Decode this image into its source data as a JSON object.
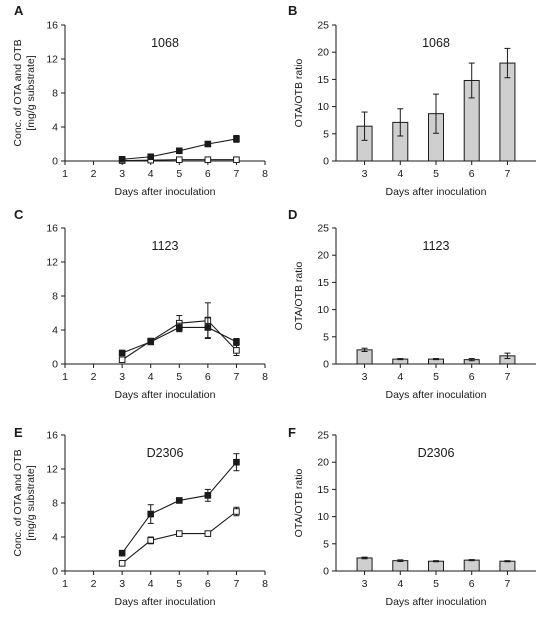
{
  "figure": {
    "description_text": "",
    "colors": {
      "axis": "#1a1a1a",
      "bar_fill": "#cfcfcf",
      "marker_filled": "#1a1a1a",
      "marker_open": "#ffffff"
    }
  },
  "chart_data": [
    {
      "panel": "A",
      "type": "line",
      "title": "1068",
      "xlabel": "Days after inoculation",
      "ylabel": [
        "Conc. of OTA and OTB",
        "[mg/g substrate]"
      ],
      "xlim": [
        1,
        8
      ],
      "ylim": [
        0,
        16
      ],
      "xticks": [
        "1",
        "2",
        "3",
        "4",
        "5",
        "6",
        "7",
        "8"
      ],
      "yticks": [
        "0",
        "4",
        "8",
        "12",
        "16"
      ],
      "series": [
        {
          "marker": "filled-square",
          "x": [
            3,
            4,
            5,
            6,
            7
          ],
          "y": [
            0.2,
            0.5,
            1.2,
            2.0,
            2.6
          ],
          "err": [
            0.1,
            0.1,
            0.2,
            0.2,
            0.4
          ]
        },
        {
          "marker": "open-square",
          "x": [
            3,
            4,
            5,
            6,
            7
          ],
          "y": [
            0.05,
            0.1,
            0.15,
            0.15,
            0.15
          ],
          "err": [
            0.05,
            0.05,
            0.05,
            0.05,
            0.05
          ]
        }
      ]
    },
    {
      "panel": "B",
      "type": "bar",
      "title": "1068",
      "xlabel": "Days after inoculation",
      "ylabel": [
        "OTA/OTB ratio"
      ],
      "categories": [
        "3",
        "4",
        "5",
        "6",
        "7"
      ],
      "ylim": [
        0,
        25
      ],
      "yticks": [
        "0",
        "5",
        "10",
        "15",
        "20",
        "25"
      ],
      "values": [
        6.4,
        7.1,
        8.7,
        14.8,
        18.0
      ],
      "err": [
        2.6,
        2.5,
        3.6,
        3.2,
        2.7
      ]
    },
    {
      "panel": "C",
      "type": "line",
      "title": "1123",
      "xlabel": "Days after inoculation",
      "ylabel": [],
      "xlim": [
        1,
        8
      ],
      "ylim": [
        0,
        16
      ],
      "xticks": [
        "1",
        "2",
        "3",
        "4",
        "5",
        "6",
        "7",
        "8"
      ],
      "yticks": [
        "0",
        "4",
        "8",
        "12",
        "16"
      ],
      "series": [
        {
          "marker": "filled-square",
          "x": [
            3,
            4,
            5,
            6,
            7
          ],
          "y": [
            1.3,
            2.6,
            4.3,
            4.3,
            2.6
          ],
          "err": [
            0.2,
            0.3,
            0.5,
            1.2,
            0.4
          ]
        },
        {
          "marker": "open-square",
          "x": [
            3,
            4,
            5,
            6,
            7
          ],
          "y": [
            0.5,
            2.7,
            4.8,
            5.1,
            1.6
          ],
          "err": [
            0.2,
            0.3,
            0.9,
            2.1,
            0.6
          ]
        }
      ]
    },
    {
      "panel": "D",
      "type": "bar",
      "title": "1123",
      "xlabel": "Days after inoculation",
      "ylabel": [
        "OTA/OTB ratio"
      ],
      "categories": [
        "3",
        "4",
        "5",
        "6",
        "7"
      ],
      "ylim": [
        0,
        25
      ],
      "yticks": [
        "0",
        "5",
        "10",
        "15",
        "20",
        "25"
      ],
      "values": [
        2.6,
        0.9,
        0.9,
        0.8,
        1.5
      ],
      "err": [
        0.3,
        0.1,
        0.1,
        0.2,
        0.5
      ]
    },
    {
      "panel": "E",
      "type": "line",
      "title": "D2306",
      "xlabel": "Days after inoculation",
      "ylabel": [
        "Conc. of OTA and OTB",
        "[mg/g substrate]"
      ],
      "xlim": [
        1,
        8
      ],
      "ylim": [
        0,
        16
      ],
      "xticks": [
        "1",
        "2",
        "3",
        "4",
        "5",
        "6",
        "7",
        "8"
      ],
      "yticks": [
        "0",
        "4",
        "8",
        "12",
        "16"
      ],
      "series": [
        {
          "marker": "filled-square",
          "x": [
            3,
            4,
            5,
            6,
            7
          ],
          "y": [
            2.1,
            6.7,
            8.3,
            8.9,
            12.8
          ],
          "err": [
            0.1,
            1.1,
            0.2,
            0.7,
            1.0
          ]
        },
        {
          "marker": "open-square",
          "x": [
            3,
            4,
            5,
            6,
            7
          ],
          "y": [
            0.9,
            3.6,
            4.4,
            4.4,
            7.0
          ],
          "err": [
            0.1,
            0.4,
            0.1,
            0.3,
            0.5
          ]
        }
      ]
    },
    {
      "panel": "F",
      "type": "bar",
      "title": "D2306",
      "xlabel": "Days after inoculation",
      "ylabel": [
        "OTA/OTB ratio"
      ],
      "categories": [
        "3",
        "4",
        "5",
        "6",
        "7"
      ],
      "ylim": [
        0,
        25
      ],
      "yticks": [
        "0",
        "5",
        "10",
        "15",
        "20",
        "25"
      ],
      "values": [
        2.4,
        1.9,
        1.8,
        2.0,
        1.8
      ],
      "err": [
        0.15,
        0.15,
        0.1,
        0.1,
        0.1
      ]
    }
  ]
}
